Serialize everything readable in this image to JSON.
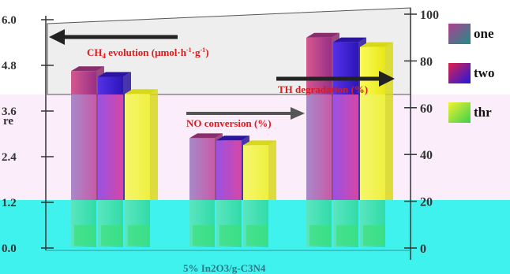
{
  "chart_data": {
    "type": "bar",
    "title": "",
    "xlabel": "5% In2O3/g-C3N4",
    "ylabel_left": "",
    "ylabel_right": "",
    "left_axis": {
      "ticks": [
        0.0,
        1.2,
        2.4,
        3.6,
        4.8,
        6.0
      ],
      "tick_labels": [
        "0.0",
        "1.2",
        "2.4",
        "3.6",
        "4.8",
        "6.0"
      ],
      "ylim": [
        0,
        6.0
      ]
    },
    "right_axis": {
      "ticks": [
        0,
        20,
        40,
        60,
        80,
        100
      ],
      "tick_labels": [
        "0",
        "20",
        "40",
        "60",
        "80",
        "100"
      ],
      "ylim": [
        0,
        100
      ]
    },
    "categories": [
      "CH4 evolution",
      "NO conversion",
      "TH degradation"
    ],
    "category_axis": [
      "left",
      "right",
      "right"
    ],
    "series": [
      {
        "name": "one",
        "values": [
          4.65,
          47,
          90
        ]
      },
      {
        "name": "two",
        "values": [
          4.5,
          46,
          88
        ]
      },
      {
        "name": "three",
        "values": [
          4.05,
          44,
          86
        ]
      }
    ],
    "legend": {
      "position": "right",
      "labels": [
        "one",
        "two",
        "thr"
      ]
    },
    "annotations": {
      "ch4_main": "CH",
      "ch4_sub": "4",
      "ch4_rest": " evolution (μmol·h",
      "ch4_sup1": "-1",
      "ch4_mid": "·g",
      "ch4_sup2": "-1",
      "ch4_end": ")",
      "no": "NO conversion (%)",
      "th": "TH degradation (%)"
    },
    "left_axis_partial_label": "re",
    "colors": {
      "cyan_band": "#3ff2ee",
      "pink_band": "#fbeefa",
      "series": [
        "#b63a88",
        "#3a1fd8",
        "#f4f22c"
      ],
      "arrow": "#3b3b3b",
      "annotation": "#e01a1a"
    },
    "grid": false
  }
}
